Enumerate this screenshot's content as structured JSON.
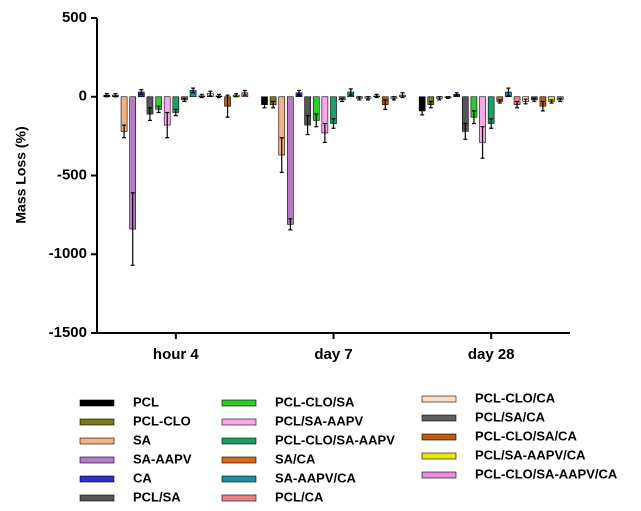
{
  "chart_data": {
    "type": "bar",
    "y_label": "Mass Loss (%)",
    "categories": [
      "hour 4",
      "day 7",
      "day 28"
    ],
    "ylim": [
      -1500,
      500
    ],
    "yticks": [
      -1500,
      -1000,
      -500,
      0,
      500
    ],
    "series": [
      {
        "name": "PCL",
        "color": "#000000",
        "values": [
          10,
          -50,
          -90
        ],
        "errors": [
          10,
          20,
          25
        ]
      },
      {
        "name": "PCL-CLO",
        "color": "#7a7a1a",
        "values": [
          10,
          -50,
          -50
        ],
        "errors": [
          10,
          20,
          20
        ]
      },
      {
        "name": "SA",
        "color": "#f4b183",
        "values": [
          -220,
          -370,
          -10
        ],
        "errors": [
          40,
          110,
          10
        ]
      },
      {
        "name": "SA-AAPV",
        "color": "#b57cc4",
        "values": [
          -840,
          -810,
          -5
        ],
        "errors": [
          230,
          35,
          5
        ]
      },
      {
        "name": "CA",
        "color": "#2f2fd0",
        "values": [
          30,
          25,
          15
        ],
        "errors": [
          15,
          15,
          10
        ]
      },
      {
        "name": "PCL/SA",
        "color": "#555555",
        "values": [
          -110,
          -180,
          -220
        ],
        "errors": [
          40,
          60,
          50
        ]
      },
      {
        "name": "PCL-CLO/SA",
        "color": "#2ecc2e",
        "values": [
          -80,
          -150,
          -130
        ],
        "errors": [
          20,
          40,
          40
        ]
      },
      {
        "name": "PCL/SA-AAPV",
        "color": "#f9a8e8",
        "values": [
          -180,
          -230,
          -290
        ],
        "errors": [
          80,
          60,
          100
        ]
      },
      {
        "name": "PCL-CLO/SA-AAPV",
        "color": "#1aa06a",
        "values": [
          -100,
          -170,
          -170
        ],
        "errors": [
          20,
          30,
          30
        ]
      },
      {
        "name": "SA/CA",
        "color": "#d2691e",
        "values": [
          -20,
          -20,
          -30
        ],
        "errors": [
          10,
          10,
          10
        ]
      },
      {
        "name": "SA-AAPV/CA",
        "color": "#1f8fa0",
        "values": [
          40,
          30,
          30
        ],
        "errors": [
          15,
          20,
          25
        ]
      },
      {
        "name": "PCL/CA",
        "color": "#f08080",
        "values": [
          5,
          -10,
          -50
        ],
        "errors": [
          10,
          10,
          20
        ]
      },
      {
        "name": "PCL-CLO/CA",
        "color": "#f9dcc4",
        "values": [
          20,
          -10,
          -30
        ],
        "errors": [
          15,
          10,
          15
        ]
      },
      {
        "name": "PCL/SA/CA",
        "color": "#606060",
        "values": [
          5,
          5,
          -20
        ],
        "errors": [
          10,
          10,
          10
        ]
      },
      {
        "name": "PCL-CLO/SA/CA",
        "color": "#c05a10",
        "values": [
          -60,
          -50,
          -60
        ],
        "errors": [
          70,
          30,
          30
        ]
      },
      {
        "name": "PCL/SA-AAPV/CA",
        "color": "#e8e800",
        "values": [
          10,
          -10,
          -30
        ],
        "errors": [
          10,
          10,
          10
        ]
      },
      {
        "name": "PCL-CLO/SA-AAPV/CA",
        "color": "#e58ee0",
        "values": [
          25,
          10,
          -20
        ],
        "errors": [
          15,
          15,
          10
        ]
      }
    ]
  }
}
